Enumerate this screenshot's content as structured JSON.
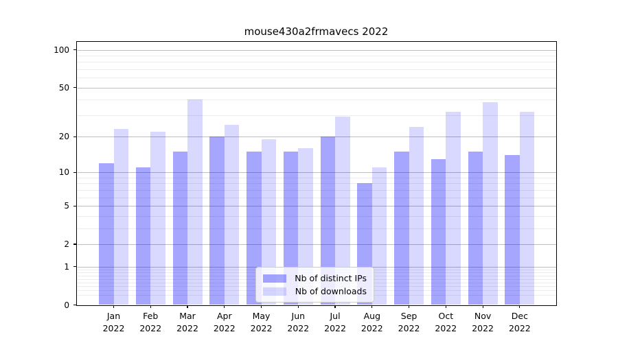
{
  "title": "mouse430a2frmavecs 2022",
  "chart_data": {
    "type": "bar",
    "title": "mouse430a2frmavecs 2022",
    "categories": [
      "Jan 2022",
      "Feb 2022",
      "Mar 2022",
      "Apr 2022",
      "May 2022",
      "Jun 2022",
      "Jul 2022",
      "Aug 2022",
      "Sep 2022",
      "Oct 2022",
      "Nov 2022",
      "Dec 2022"
    ],
    "series": [
      {
        "name": "Nb of distinct IPs",
        "color": "rgba(0,0,255,0.35)",
        "values": [
          12,
          11,
          15,
          20,
          15,
          15,
          20,
          8,
          15,
          13,
          15,
          14
        ]
      },
      {
        "name": "Nb of downloads",
        "color": "rgba(0,0,255,0.15)",
        "values": [
          23,
          22,
          40,
          25,
          19,
          16,
          29,
          11,
          24,
          32,
          38,
          32
        ]
      }
    ],
    "xlabel": "",
    "ylabel": "",
    "yscale": "log1p",
    "ylim": [
      0,
      115
    ],
    "yticks": [
      100,
      50,
      20,
      10,
      5,
      2,
      1,
      0
    ],
    "minor_yticks": [
      90,
      80,
      70,
      60,
      40,
      30,
      9,
      8,
      7,
      6,
      4,
      3,
      0.9,
      0.8,
      0.7,
      0.6,
      0.5,
      0.4,
      0.3,
      0.2
    ],
    "grid": true,
    "legend_position": "lower center",
    "axis_color": "#000000",
    "major_grid_color": "#bdbdbd",
    "minor_grid_color": "#ececec"
  }
}
